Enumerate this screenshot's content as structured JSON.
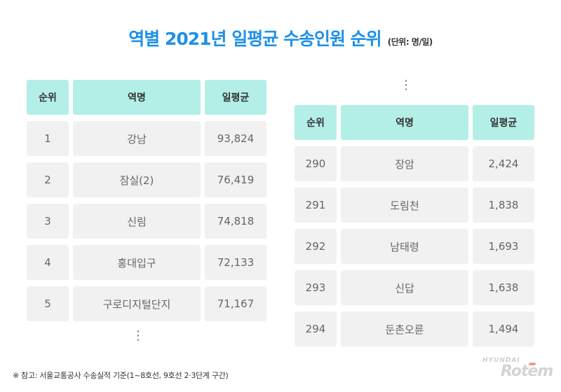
{
  "title": "역별 2021년 일평균 수송인원 순위",
  "unit": "(단위: 명/일)",
  "ellipsis": "⋮",
  "footnote": "※ 참고: 서울교통공사 수송실적 기준(1~8호선, 9호선 2·3단계 구간)",
  "logo": {
    "top": "HYUNDAI",
    "main": "Rotem"
  },
  "colors": {
    "title": "#1e90e8",
    "header_bg": "#b3efe7",
    "cell_bg": "#f1f1f1"
  },
  "chart_data": {
    "type": "table",
    "title": "역별 2021년 일평균 수송인원 순위",
    "unit": "(단위: 명/일)",
    "columns": [
      "순위",
      "역명",
      "일평균"
    ],
    "tables": [
      {
        "name": "top",
        "rows": [
          [
            "1",
            "강남",
            "93,824"
          ],
          [
            "2",
            "잠실(2)",
            "76,419"
          ],
          [
            "3",
            "신림",
            "74,818"
          ],
          [
            "4",
            "홍대입구",
            "72,133"
          ],
          [
            "5",
            "구로디지털단지",
            "71,167"
          ]
        ]
      },
      {
        "name": "bottom",
        "rows": [
          [
            "290",
            "장암",
            "2,424"
          ],
          [
            "291",
            "도림천",
            "1,838"
          ],
          [
            "292",
            "남태령",
            "1,693"
          ],
          [
            "293",
            "신답",
            "1,638"
          ],
          [
            "294",
            "둔촌오륜",
            "1,494"
          ]
        ]
      }
    ]
  }
}
